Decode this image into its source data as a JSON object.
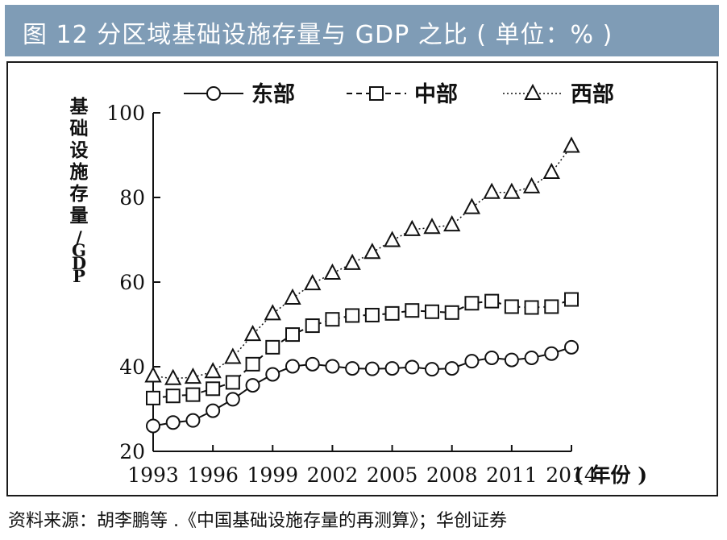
{
  "title": "图 12  分区域基础设施存量与 GDP 之比 ( 单位：% )",
  "source": "资料来源：胡李鹏等 .《中国基础设施存量的再测算》；华创证券",
  "chart_data": {
    "type": "line",
    "title": "",
    "xlabel": "( 年份 )",
    "ylabel": "基础设施存量/GDP",
    "ylim": [
      20,
      100
    ],
    "xlim": [
      1993,
      2014
    ],
    "x_ticks": [
      "1993",
      "1996",
      "1999",
      "2002",
      "2005",
      "2008",
      "2011",
      "2014"
    ],
    "y_ticks": [
      "20",
      "40",
      "60",
      "80",
      "100"
    ],
    "legend_position": "top",
    "x": [
      1993,
      1994,
      1995,
      1996,
      1997,
      1998,
      1999,
      2000,
      2001,
      2002,
      2003,
      2004,
      2005,
      2006,
      2007,
      2008,
      2009,
      2010,
      2011,
      2012,
      2013,
      2014
    ],
    "series": [
      {
        "name": "东部",
        "marker": "circle",
        "dash": "solid",
        "values": [
          26,
          26.8,
          27.3,
          29.6,
          32.3,
          35.6,
          38.2,
          40.1,
          40.6,
          40.1,
          39.6,
          39.5,
          39.6,
          39.9,
          39.4,
          39.6,
          41.3,
          42.1,
          41.6,
          42.1,
          43.1,
          44.6
        ]
      },
      {
        "name": "中部",
        "marker": "square",
        "dash": "dashed",
        "values": [
          32.6,
          33.1,
          33.4,
          34.8,
          36.3,
          40.6,
          44.6,
          47.6,
          49.7,
          51.2,
          52.1,
          52.2,
          52.6,
          53.3,
          53.0,
          52.8,
          55.0,
          55.5,
          54.2,
          54.0,
          54.2,
          55.9
        ]
      },
      {
        "name": "西部",
        "marker": "triangle",
        "dash": "dotted",
        "values": [
          37.8,
          37.2,
          37.5,
          38.8,
          42.2,
          47.6,
          52.5,
          56.2,
          59.6,
          62.1,
          64.4,
          67.0,
          69.8,
          72.4,
          72.9,
          73.5,
          77.6,
          81.2,
          81.2,
          82.5,
          85.9,
          92.1
        ]
      }
    ]
  }
}
